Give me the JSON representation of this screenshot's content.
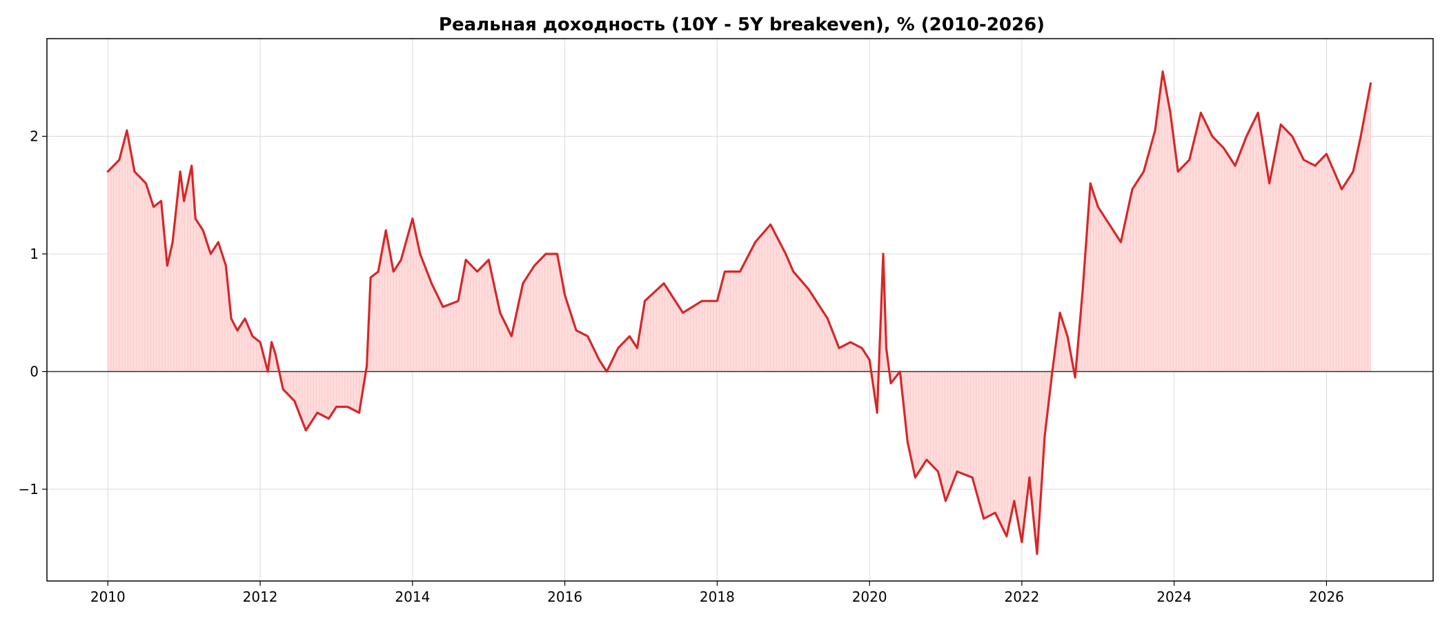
{
  "chart_data": {
    "type": "area",
    "title": "Реальная доходность (10Y - 5Y breakeven), % (2010-2026)",
    "xlabel": "",
    "ylabel": "",
    "xlim": [
      2009.2,
      2027.4
    ],
    "ylim": [
      -1.78,
      2.83
    ],
    "x_ticks": [
      2010,
      2012,
      2014,
      2016,
      2018,
      2020,
      2022,
      2024,
      2026
    ],
    "x_tick_labels": [
      "2010",
      "2012",
      "2014",
      "2016",
      "2018",
      "2020",
      "2022",
      "2024",
      "2026"
    ],
    "y_ticks": [
      -1,
      0,
      1,
      2
    ],
    "y_tick_labels": [
      "−1",
      "0",
      "1",
      "2"
    ],
    "grid": true,
    "baseline": 0,
    "colors": {
      "line": "#d62728",
      "fill": "#ffdddd",
      "fill_stroke": "#f7b9b9",
      "baseline": "#333333"
    },
    "series": [
      {
        "name": "",
        "x": [
          2010.0,
          2010.15,
          2010.25,
          2010.35,
          2010.5,
          2010.6,
          2010.7,
          2010.78,
          2010.85,
          2010.95,
          2011.0,
          2011.1,
          2011.15,
          2011.25,
          2011.35,
          2011.45,
          2011.55,
          2011.62,
          2011.7,
          2011.8,
          2011.9,
          2012.0,
          2012.1,
          2012.15,
          2012.2,
          2012.3,
          2012.45,
          2012.6,
          2012.75,
          2012.9,
          2013.0,
          2013.15,
          2013.3,
          2013.4,
          2013.45,
          2013.55,
          2013.65,
          2013.75,
          2013.85,
          2014.0,
          2014.1,
          2014.25,
          2014.4,
          2014.6,
          2014.7,
          2014.85,
          2015.0,
          2015.15,
          2015.3,
          2015.45,
          2015.6,
          2015.75,
          2015.9,
          2016.0,
          2016.15,
          2016.3,
          2016.45,
          2016.55,
          2016.7,
          2016.85,
          2016.95,
          2017.05,
          2017.3,
          2017.55,
          2017.8,
          2018.0,
          2018.1,
          2018.3,
          2018.5,
          2018.7,
          2018.9,
          2019.0,
          2019.2,
          2019.45,
          2019.6,
          2019.75,
          2019.9,
          2020.0,
          2020.1,
          2020.18,
          2020.22,
          2020.28,
          2020.4,
          2020.5,
          2020.6,
          2020.75,
          2020.9,
          2021.0,
          2021.15,
          2021.35,
          2021.5,
          2021.65,
          2021.8,
          2021.9,
          2022.0,
          2022.1,
          2022.2,
          2022.3,
          2022.4,
          2022.5,
          2022.6,
          2022.7,
          2022.8,
          2022.9,
          2023.0,
          2023.15,
          2023.3,
          2023.45,
          2023.6,
          2023.75,
          2023.85,
          2023.95,
          2024.05,
          2024.2,
          2024.35,
          2024.5,
          2024.65,
          2024.8,
          2024.95,
          2025.1,
          2025.25,
          2025.4,
          2025.55,
          2025.7,
          2025.85,
          2026.0,
          2026.1,
          2026.2,
          2026.35,
          2026.45,
          2026.58
        ],
        "y": [
          1.7,
          1.8,
          2.05,
          1.7,
          1.6,
          1.4,
          1.45,
          0.9,
          1.1,
          1.7,
          1.45,
          1.75,
          1.3,
          1.2,
          1.0,
          1.1,
          0.9,
          0.45,
          0.35,
          0.45,
          0.3,
          0.25,
          0.0,
          0.25,
          0.15,
          -0.15,
          -0.25,
          -0.5,
          -0.35,
          -0.4,
          -0.3,
          -0.3,
          -0.35,
          0.05,
          0.8,
          0.85,
          1.2,
          0.85,
          0.95,
          1.3,
          1.0,
          0.75,
          0.55,
          0.6,
          0.95,
          0.85,
          0.95,
          0.5,
          0.3,
          0.75,
          0.9,
          1.0,
          1.0,
          0.65,
          0.35,
          0.3,
          0.1,
          0.0,
          0.2,
          0.3,
          0.2,
          0.6,
          0.75,
          0.5,
          0.6,
          0.6,
          0.85,
          0.85,
          1.1,
          1.25,
          1.0,
          0.85,
          0.7,
          0.45,
          0.2,
          0.25,
          0.2,
          0.1,
          -0.35,
          1.0,
          0.2,
          -0.1,
          0.0,
          -0.6,
          -0.9,
          -0.75,
          -0.85,
          -1.1,
          -0.85,
          -0.9,
          -1.25,
          -1.2,
          -1.4,
          -1.1,
          -1.45,
          -0.9,
          -1.55,
          -0.55,
          0.0,
          0.5,
          0.3,
          -0.05,
          0.7,
          1.6,
          1.4,
          1.25,
          1.1,
          1.55,
          1.7,
          2.05,
          2.55,
          2.2,
          1.7,
          1.8,
          2.2,
          2.0,
          1.9,
          1.75,
          2.0,
          2.2,
          1.6,
          2.1,
          2.0,
          1.8,
          1.75,
          1.85,
          1.7,
          1.55,
          1.7,
          2.0,
          2.45
        ]
      }
    ]
  }
}
